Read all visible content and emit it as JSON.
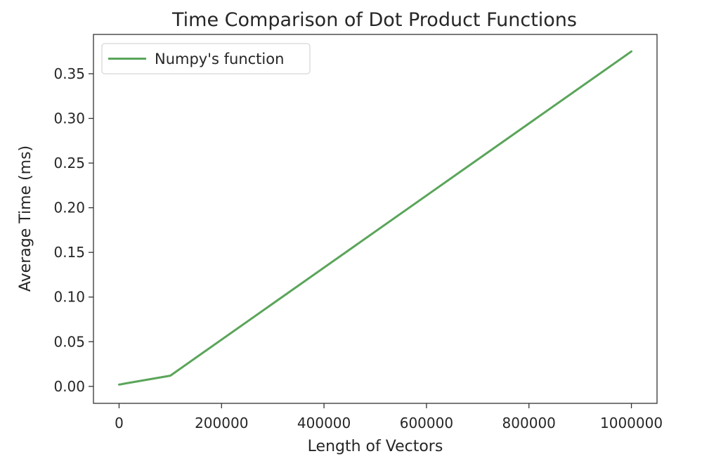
{
  "chart_data": {
    "type": "line",
    "title": "Time Comparison of Dot Product Functions",
    "xlabel": "Length of Vectors",
    "ylabel": "Average Time (ms)",
    "xlim": [
      -50000,
      1050000
    ],
    "ylim": [
      -0.019,
      0.394
    ],
    "xticks": [
      0,
      200000,
      400000,
      600000,
      800000,
      1000000
    ],
    "xtick_labels": [
      "0",
      "200000",
      "400000",
      "600000",
      "800000",
      "1000000"
    ],
    "yticks": [
      0.0,
      0.05,
      0.1,
      0.15,
      0.2,
      0.25,
      0.3,
      0.35
    ],
    "ytick_labels": [
      "0.00",
      "0.05",
      "0.10",
      "0.15",
      "0.20",
      "0.25",
      "0.30",
      "0.35"
    ],
    "grid": false,
    "legend_position": "upper-left",
    "series": [
      {
        "name": "Numpy's function",
        "color": "#5aa55a",
        "x": [
          10,
          100,
          1000,
          10000,
          100000,
          1000000
        ],
        "y": [
          0.002,
          0.002,
          0.002,
          0.003,
          0.012,
          0.375
        ]
      }
    ]
  }
}
